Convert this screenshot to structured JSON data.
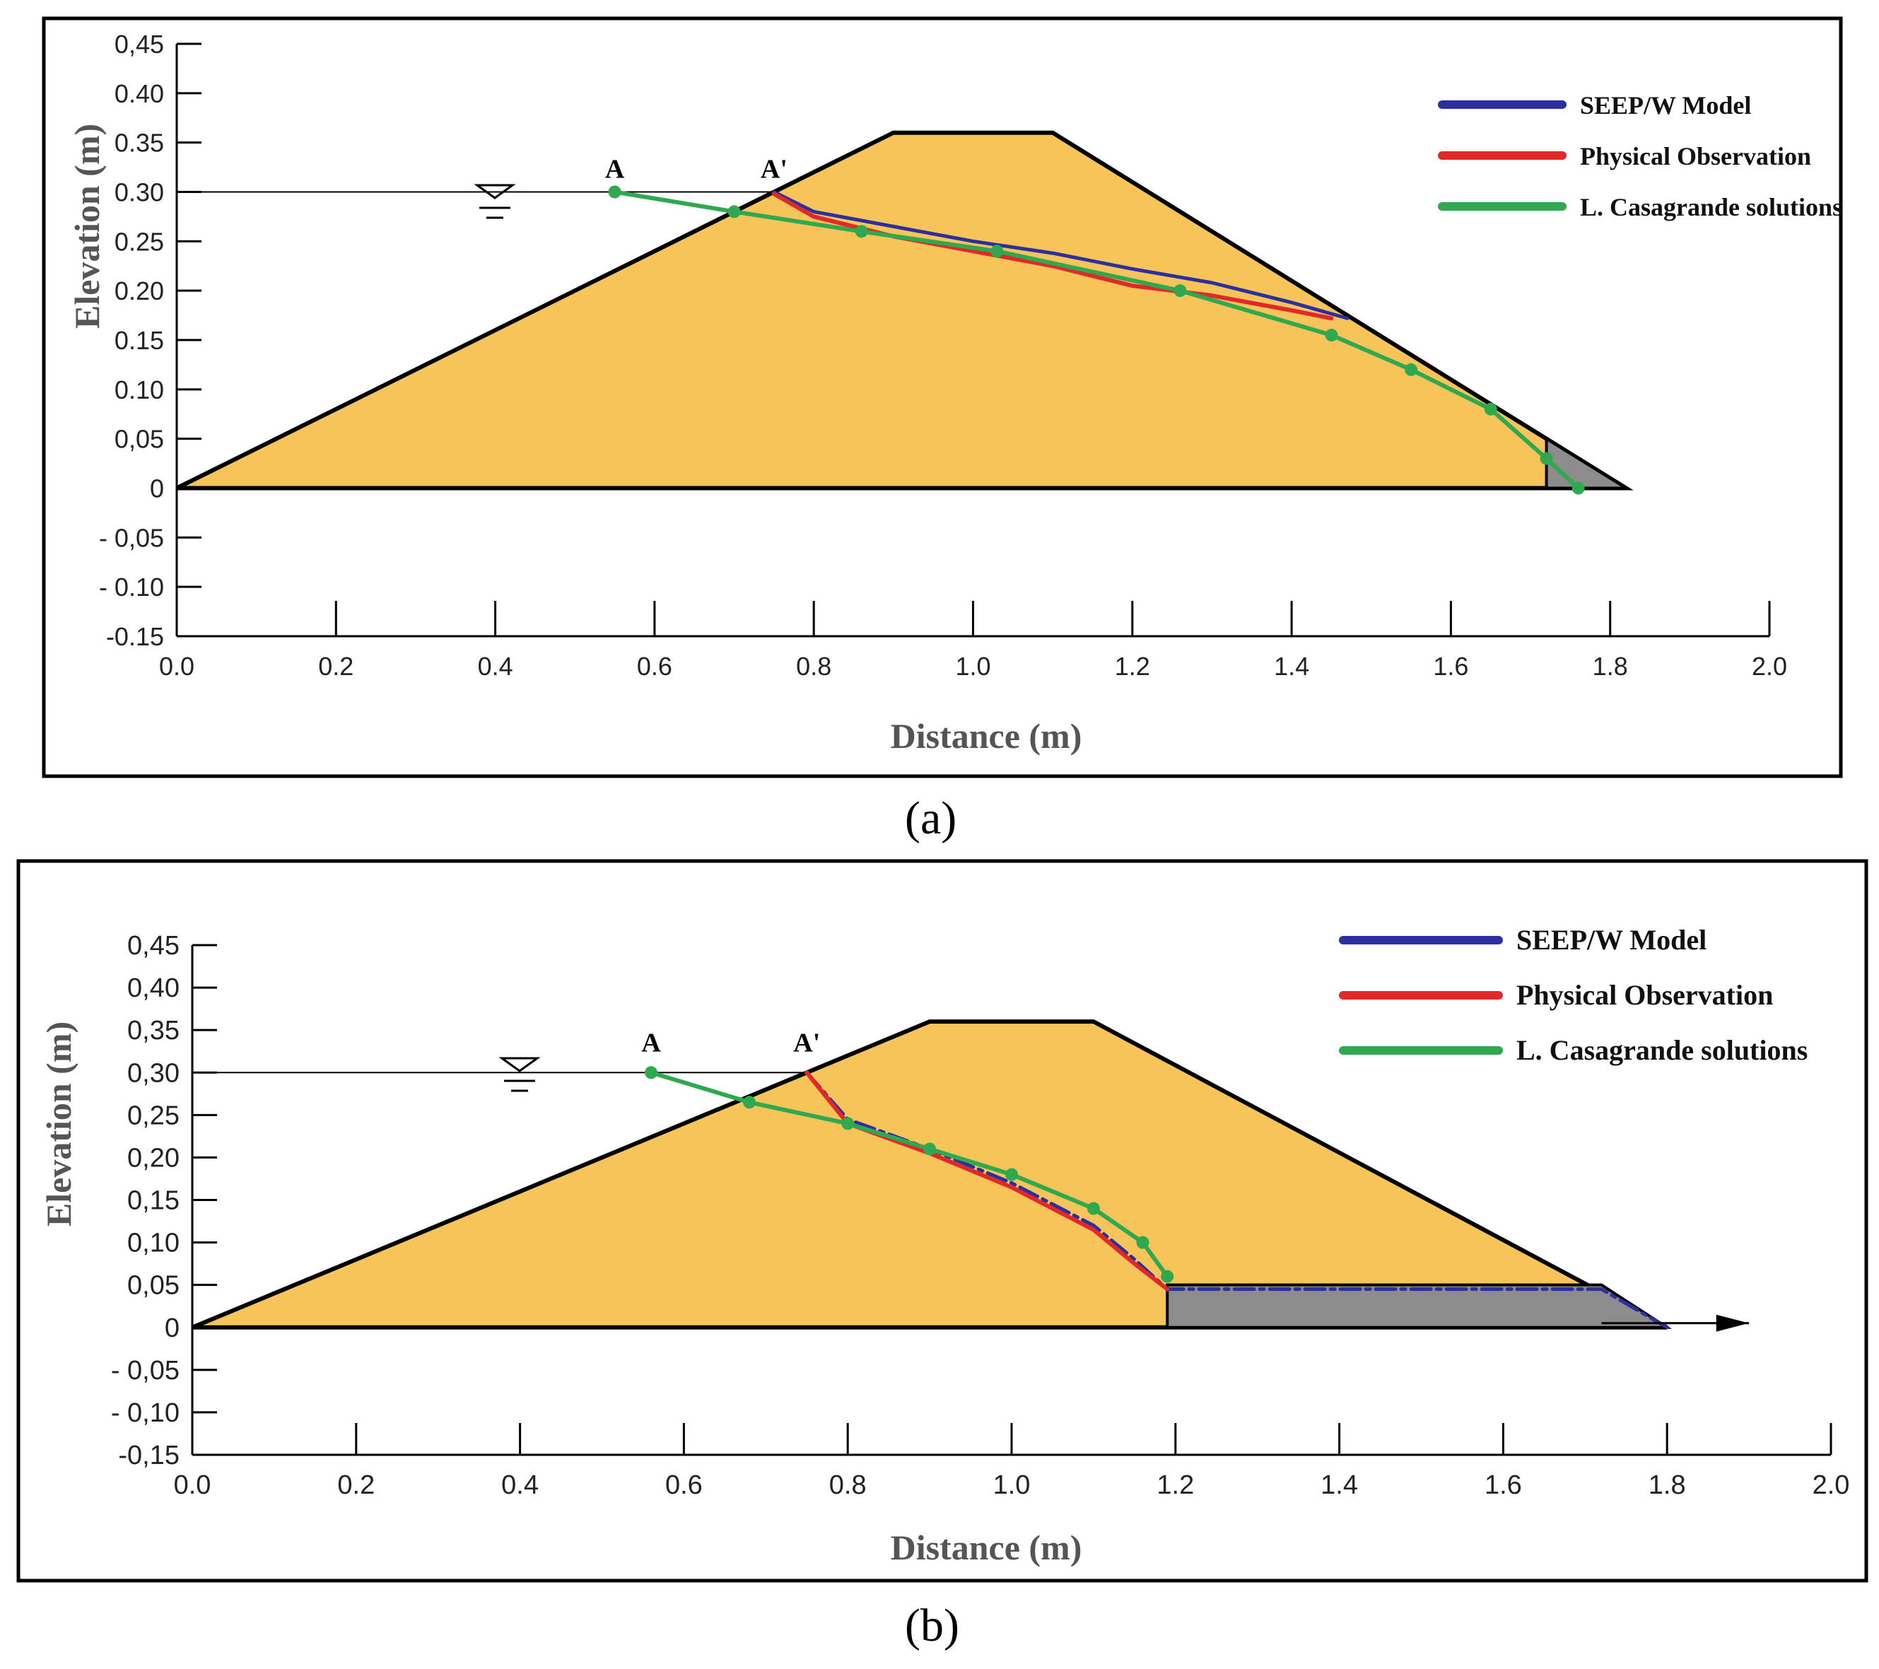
{
  "captions": {
    "a": "(a)",
    "b": "(b)"
  },
  "colors": {
    "dam": "#F7C45A",
    "drain": "#8C8C8C",
    "seep": "#2B2FA0",
    "physical": "#E02A2A",
    "casagrande": "#2FA84F"
  },
  "chart_data": [
    {
      "type": "line",
      "panel": "a",
      "xlabel": "Distance (m)",
      "ylabel": "Elevation (m)",
      "xlim": [
        0.0,
        2.0
      ],
      "ylim": [
        -0.15,
        0.45
      ],
      "x_ticks": [
        "0.0",
        "0.2",
        "0.4",
        "0.6",
        "0.8",
        "1.0",
        "1.2",
        "1.4",
        "1.6",
        "1.8",
        "2.0"
      ],
      "y_ticks": [
        "0,45",
        "0.40",
        "0.35",
        "0.30",
        "0.25",
        "0.20",
        "0.15",
        "0.10",
        "0,05",
        "0",
        "- 0,05",
        "- 0.10",
        "-0.15"
      ],
      "legend": [
        "SEEP/W Model",
        "Physical Observation",
        "L. Casagrande solutions"
      ],
      "labels": {
        "a": "A",
        "a_prime": "A'"
      },
      "dam": {
        "x": [
          0.0,
          0.9,
          1.1,
          1.82
        ],
        "y": [
          0.0,
          0.36,
          0.36,
          0.0
        ]
      },
      "drain": {
        "x": [
          1.72,
          1.72,
          1.82
        ],
        "y": [
          0.0,
          0.05,
          0.0
        ]
      },
      "reservoir_level": 0.3,
      "series": [
        {
          "name": "SEEP/W Model",
          "x": [
            0.75,
            0.8,
            0.9,
            1.0,
            1.1,
            1.2,
            1.3,
            1.4,
            1.47
          ],
          "y": [
            0.3,
            0.28,
            0.265,
            0.25,
            0.238,
            0.222,
            0.208,
            0.188,
            0.172
          ]
        },
        {
          "name": "Physical Observation",
          "x": [
            0.75,
            0.8,
            0.9,
            1.0,
            1.1,
            1.2,
            1.3,
            1.4,
            1.45
          ],
          "y": [
            0.298,
            0.275,
            0.255,
            0.24,
            0.225,
            0.205,
            0.195,
            0.18,
            0.172
          ]
        },
        {
          "name": "L. Casagrande solutions",
          "x": [
            0.55,
            0.7,
            0.86,
            1.03,
            1.26,
            1.45,
            1.55,
            1.65,
            1.72,
            1.76
          ],
          "y": [
            0.3,
            0.28,
            0.26,
            0.24,
            0.2,
            0.155,
            0.12,
            0.08,
            0.03,
            0.0
          ]
        }
      ]
    },
    {
      "type": "line",
      "panel": "b",
      "xlabel": "Distance (m)",
      "ylabel": "Elevation (m)",
      "xlim": [
        0.0,
        2.0
      ],
      "ylim": [
        -0.15,
        0.45
      ],
      "x_ticks": [
        "0.0",
        "0.2",
        "0.4",
        "0.6",
        "0.8",
        "1.0",
        "1.2",
        "1.4",
        "1.6",
        "1.8",
        "2.0"
      ],
      "y_ticks": [
        "0,45",
        "0,40",
        "0,35",
        "0,30",
        "0,25",
        "0,20",
        "0,15",
        "0,10",
        "0,05",
        "0",
        "- 0,05",
        "- 0,10",
        "-0,15"
      ],
      "legend": [
        "SEEP/W Model",
        "Physical Observation",
        "L. Casagrande solutions"
      ],
      "labels": {
        "a": "A",
        "a_prime": "A'"
      },
      "dam": {
        "x": [
          0.0,
          0.9,
          1.1,
          1.8
        ],
        "y": [
          0.0,
          0.36,
          0.36,
          0.0
        ]
      },
      "drain": {
        "x": [
          1.19,
          1.19,
          1.72,
          1.8
        ],
        "y": [
          0.0,
          0.05,
          0.05,
          0.0
        ]
      },
      "reservoir_level": 0.3,
      "series": [
        {
          "name": "SEEP/W Model",
          "x": [
            0.75,
            0.8,
            0.9,
            1.0,
            1.1,
            1.15,
            1.19,
            1.4,
            1.6,
            1.72,
            1.8
          ],
          "y": [
            0.3,
            0.245,
            0.21,
            0.17,
            0.12,
            0.08,
            0.045,
            0.045,
            0.045,
            0.045,
            0.0
          ]
        },
        {
          "name": "Physical Observation",
          "x": [
            0.75,
            0.8,
            0.9,
            1.0,
            1.1,
            1.15,
            1.19
          ],
          "y": [
            0.3,
            0.24,
            0.205,
            0.165,
            0.115,
            0.075,
            0.045
          ]
        },
        {
          "name": "L. Casagrande solutions",
          "x": [
            0.56,
            0.68,
            0.8,
            0.9,
            1.0,
            1.1,
            1.16,
            1.19
          ],
          "y": [
            0.3,
            0.265,
            0.24,
            0.21,
            0.18,
            0.14,
            0.1,
            0.06
          ]
        }
      ]
    }
  ]
}
